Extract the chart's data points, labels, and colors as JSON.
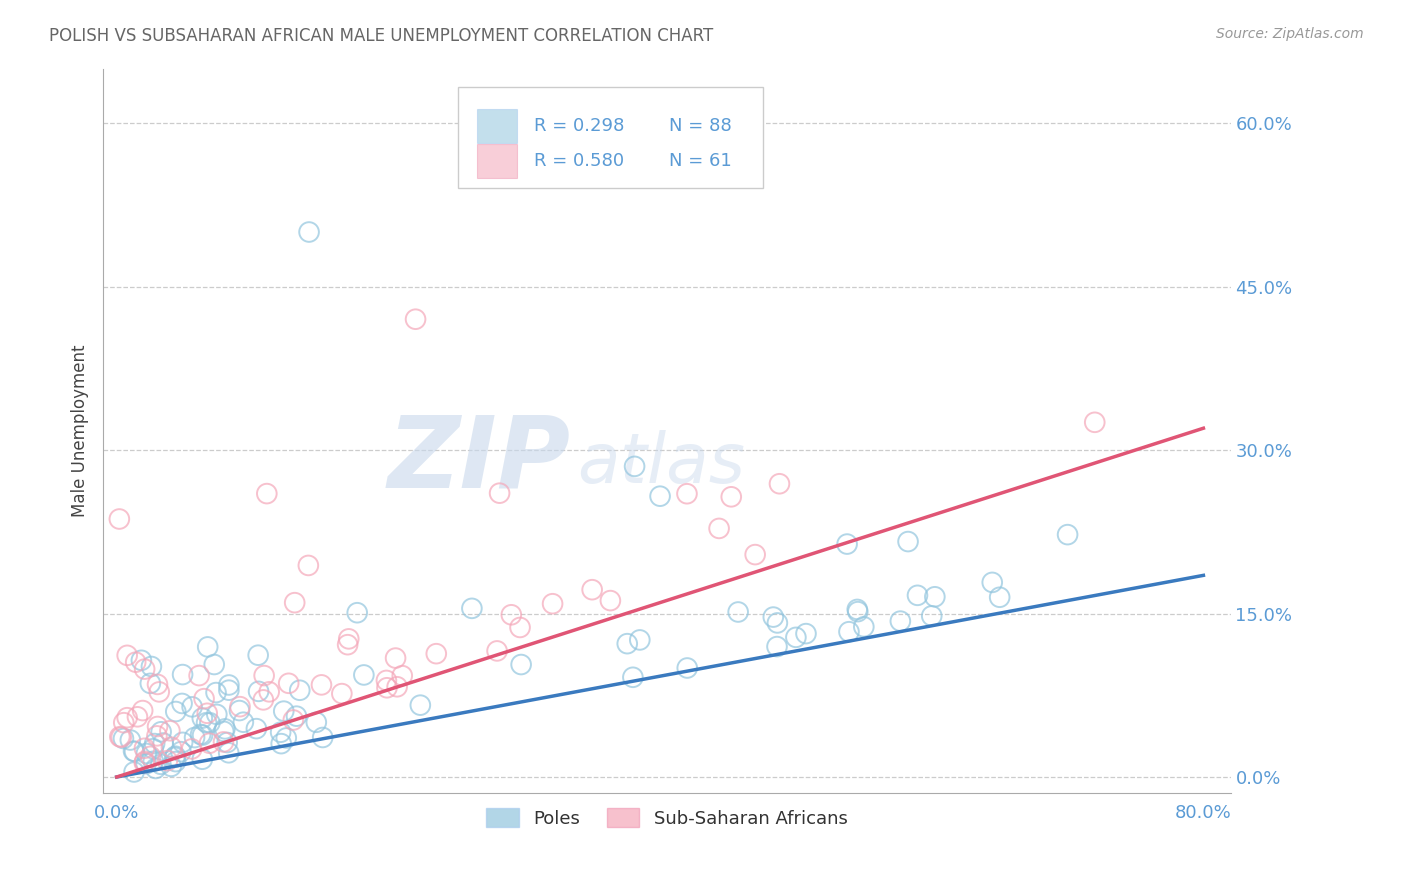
{
  "title": "POLISH VS SUBSAHARAN AFRICAN MALE UNEMPLOYMENT CORRELATION CHART",
  "source": "Source: ZipAtlas.com",
  "ylabel": "Male Unemployment",
  "xlim": [
    -0.01,
    0.82
  ],
  "ylim": [
    -0.015,
    0.65
  ],
  "xtick_positions": [
    0.0,
    0.2,
    0.4,
    0.6,
    0.8
  ],
  "xticklabels_show": [
    "0.0%",
    "",
    "",
    "",
    "80.0%"
  ],
  "ytick_positions": [
    0.0,
    0.15,
    0.3,
    0.45,
    0.6
  ],
  "yticklabels_right": [
    "0.0%",
    "15.0%",
    "30.0%",
    "45.0%",
    "60.0%"
  ],
  "blue_color": "#92c5de",
  "pink_color": "#f4a7b9",
  "blue_line_color": "#3a7abf",
  "pink_line_color": "#e05575",
  "trendline_blue_y0": 0.0,
  "trendline_blue_y1": 0.185,
  "trendline_pink_y0": 0.0,
  "trendline_pink_y1": 0.32,
  "watermark_ZIP": "ZIP",
  "watermark_atlas": "atlas",
  "background_color": "#ffffff",
  "title_color": "#666666",
  "tick_label_color": "#5b9bd5",
  "ylabel_color": "#444444",
  "grid_color": "#cccccc",
  "legend_blue_text1": "R = 0.298",
  "legend_blue_text2": "N = 88",
  "legend_pink_text1": "R = 0.580",
  "legend_pink_text2": "N = 61",
  "legend_label_blue": "Poles",
  "legend_label_pink": "Sub-Saharan Africans"
}
